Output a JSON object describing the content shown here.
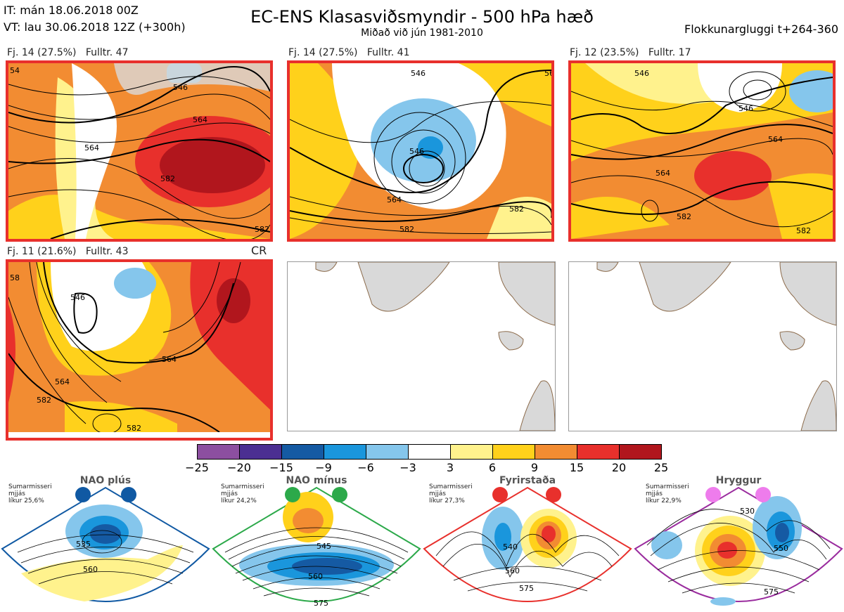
{
  "header": {
    "it_line": "IT: mán 18.06.2018 00Z",
    "vt_line": "VT: lau 30.06.2018 12Z  (+300h)",
    "title": "EC-ENS Klasasviðsmyndir - 500 hPa hæð",
    "subtitle": "Miðað við jún 1981-2010",
    "window": "Flokkunargluggi t+264-360"
  },
  "panels": [
    {
      "label": "Fj. 14 (27.5%)   Fulltr. 47",
      "contours": [
        "546",
        "564",
        "564",
        "582",
        "582",
        "54"
      ]
    },
    {
      "label": "Fj. 14 (27.5%)   Fulltr. 41",
      "contours": [
        "546",
        "546",
        "564",
        "582",
        "582",
        "56"
      ]
    },
    {
      "label": "Fj. 12 (23.5%)   Fulltr. 17",
      "contours": [
        "546",
        "546",
        "564",
        "564",
        "582",
        "582"
      ]
    },
    {
      "label": "Fj. 11 (21.6%)   Fulltr. 43",
      "contours": [
        "546",
        "564",
        "564",
        "582",
        "582",
        "58"
      ],
      "tag": "CR"
    }
  ],
  "colorbar": {
    "colors": [
      "#8c4fa0",
      "#4b2f92",
      "#155aa3",
      "#1a96dc",
      "#85c6ec",
      "#ffffff",
      "#fff28d",
      "#ffd11b",
      "#f28c32",
      "#e8302c",
      "#b1161d"
    ],
    "ticks": [
      "−25",
      "−20",
      "−15",
      "−9",
      "−6",
      "−3",
      "3",
      "6",
      "9",
      "15",
      "20",
      "25"
    ]
  },
  "regimes": [
    {
      "name": "NAO plús",
      "meta": "Sumarmisseri\nmjjás\nlíkur 25,6%",
      "color": "#1059a3",
      "contours": [
        "535",
        "560"
      ]
    },
    {
      "name": "NAO mínus",
      "meta": "Sumarmisseri\nmjjás\nlíkur 24,2%",
      "color": "#2ca94a",
      "contours": [
        "545",
        "560",
        "575"
      ]
    },
    {
      "name": "Fyrirstaða",
      "meta": "Sumarmisseri\nmjjás\nlíkur 27,3%",
      "color": "#e8302c",
      "contours": [
        "540",
        "560",
        "575"
      ]
    },
    {
      "name": "Hryggur",
      "meta": "Sumarmisseri\nmjjás\nlíkur 22,9%",
      "color": "#9a2c9e",
      "dot_color": "#ee7cec",
      "contours": [
        "530",
        "550",
        "575"
      ]
    }
  ]
}
